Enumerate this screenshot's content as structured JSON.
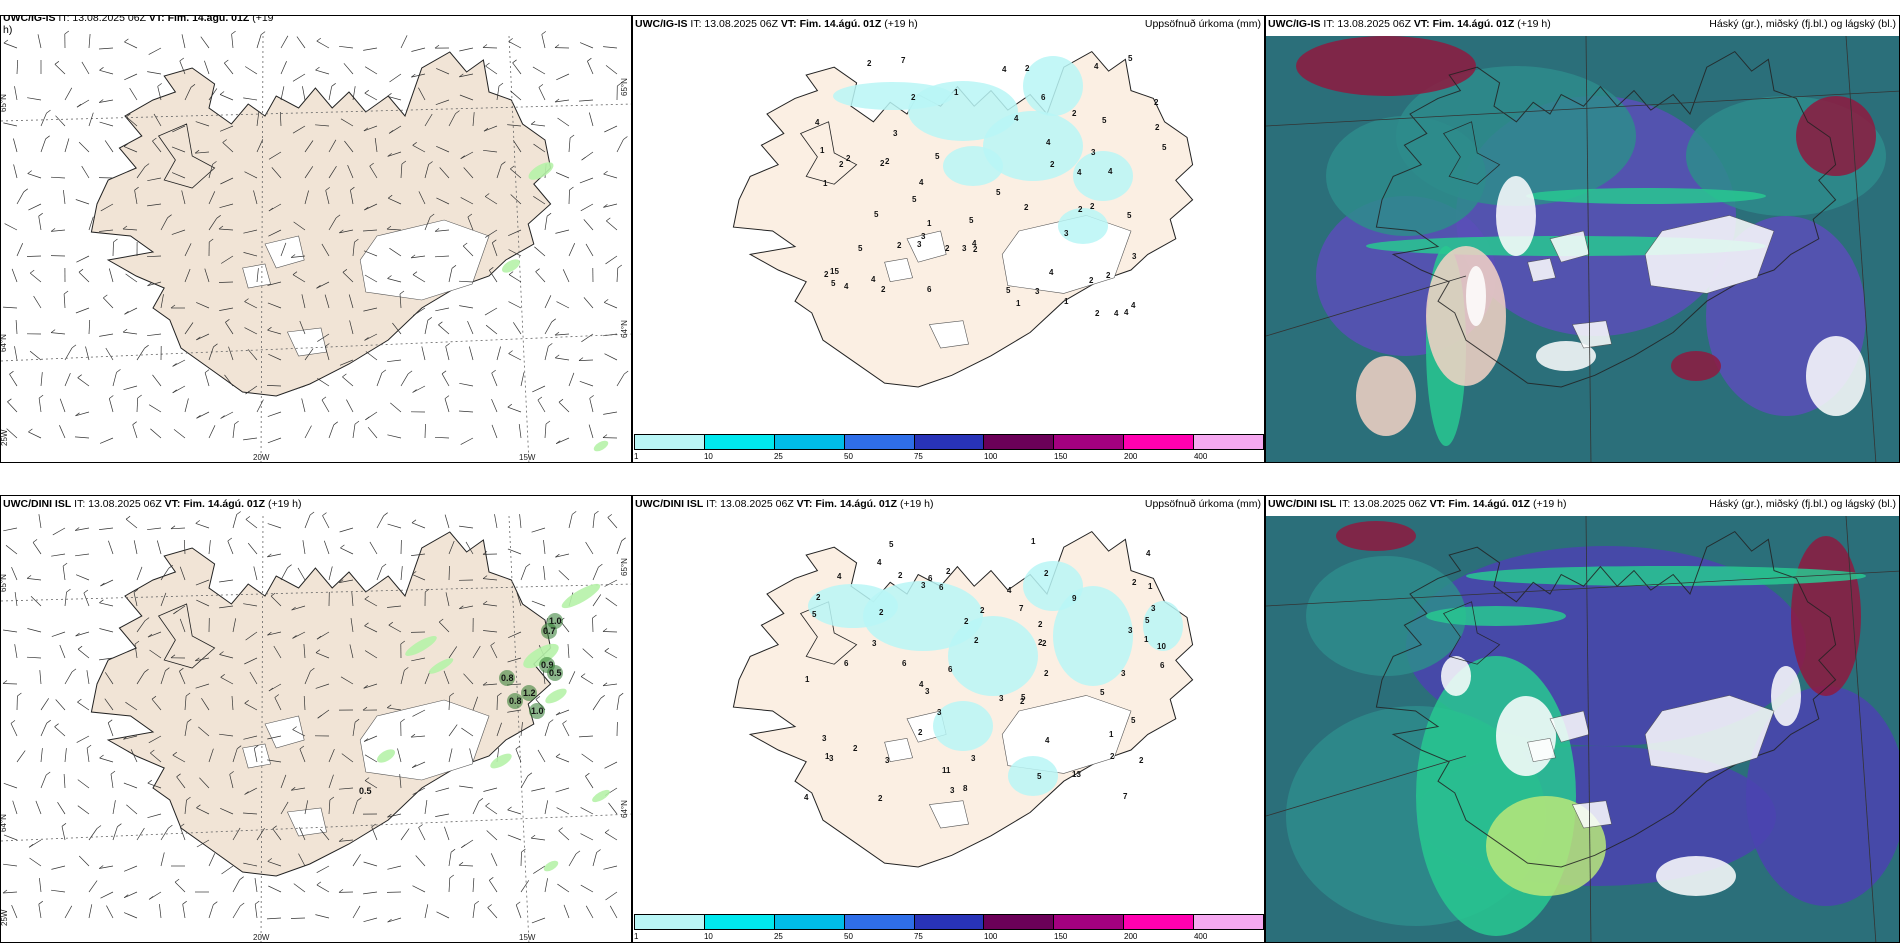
{
  "rows": [
    {
      "model": "UWC/IG-IS",
      "wind": {
        "model": "UWC/IG-IS",
        "prefix": "IT: 13.08.2025 06Z ",
        "vt": "VT: Fim. 14.ágú. 01Z",
        "lead": " (+19",
        "wrap": "h)",
        "lat_top": "65°N",
        "lat_bot": "64°N",
        "lon_a": "20W",
        "lon_b": "15W",
        "lon_left": "25W",
        "gust_labels": []
      },
      "precip": {
        "model": "UWC/IG-IS",
        "prefix": "IT: 13.08.2025 06Z ",
        "vt": "VT: Fim. 14.ágú. 01Z",
        "lead": " (+19 h)",
        "right": "Uppsöfnuð úrkoma (mm)",
        "values": [
          "5",
          "2",
          "2",
          "4",
          "2",
          "3",
          "5",
          "3",
          "4",
          "4",
          "4",
          "2",
          "4",
          "4",
          "5",
          "5",
          "2",
          "5",
          "4",
          "2",
          "3",
          "2",
          "2",
          "2",
          "5",
          "15",
          "5",
          "2",
          "3",
          "2",
          "4",
          "3",
          "2",
          "1",
          "2",
          "2",
          "5",
          "6",
          "1",
          "4",
          "5",
          "1",
          "2",
          "5",
          "4",
          "3",
          "7",
          "6",
          "1",
          "3",
          "2",
          "4",
          "2",
          "4",
          "2",
          "5",
          "4",
          "2",
          "1",
          "4",
          "2",
          "2",
          "2",
          "5",
          "4",
          "3",
          "1"
        ]
      },
      "clouds": {
        "model": "UWC/IG-IS",
        "prefix": "IT: 13.08.2025 06Z ",
        "vt": "VT: Fim. 14.ágú. 01Z",
        "lead": " (+19 h)",
        "right": "Háský (gr.), miðský (fj.bl.) og lágský (bl.)"
      }
    },
    {
      "model": "UWC/DINI ISL",
      "wind": {
        "model": "UWC/DINI ISL",
        "prefix": "IT: 13.08.2025 06Z ",
        "vt": "VT: Fim. 14.ágú. 01Z",
        "lead": " (+19 h)",
        "wrap": "",
        "lat_top": "65°N",
        "lat_bot": "64°N",
        "lon_a": "20W",
        "lon_b": "15W",
        "lon_left": "25W",
        "gust_labels": [
          "1.0",
          "0.8",
          "0.7",
          "0.9",
          "0.5",
          "0.8",
          "1.0",
          "1.2",
          "0.5"
        ]
      },
      "precip": {
        "model": "UWC/DINI ISL",
        "prefix": "IT: 13.08.2025 06Z ",
        "vt": "VT: Fim. 14.ágú. 01Z",
        "lead": " (+19 h)",
        "right": "Uppsöfnuð úrkoma (mm)",
        "values": [
          "6",
          "4",
          "3",
          "4",
          "2",
          "3",
          "2",
          "6",
          "3",
          "4",
          "2",
          "3",
          "3",
          "7",
          "4",
          "2",
          "1",
          "5",
          "10",
          "2",
          "3",
          "5",
          "6",
          "3",
          "2",
          "6",
          "5",
          "1",
          "3",
          "4",
          "8",
          "9",
          "6",
          "7",
          "13",
          "11",
          "1",
          "2",
          "2",
          "3",
          "2",
          "5",
          "2",
          "1",
          "2",
          "3",
          "2",
          "2",
          "2",
          "6",
          "5",
          "4",
          "2",
          "3",
          "5",
          "2",
          "2",
          "3",
          "2",
          "3",
          "4",
          "1",
          "2",
          "5",
          "1"
        ]
      },
      "clouds": {
        "model": "UWC/DINI ISL",
        "prefix": "IT: 13.08.2025 06Z ",
        "vt": "VT: Fim. 14.ágú. 01Z",
        "lead": " (+19 h)",
        "right": "Háský (gr.), miðský (fj.bl.) og lágský (bl.)"
      }
    }
  ],
  "colorbar": {
    "ticks": [
      "1",
      "10",
      "25",
      "50",
      "75",
      "100",
      "150",
      "200",
      "400"
    ],
    "colors": [
      "#b9f6f6",
      "#00e8ee",
      "#00bde8",
      "#2f6ee8",
      "#2833b8",
      "#6b0058",
      "#a3007f",
      "#ff00b0",
      "#f5a8f0"
    ]
  },
  "colors": {
    "land": "#f1e4d6",
    "land_precip": "#fbefe3",
    "sea": "#ffffff",
    "glacier": "#ffffff"
  }
}
